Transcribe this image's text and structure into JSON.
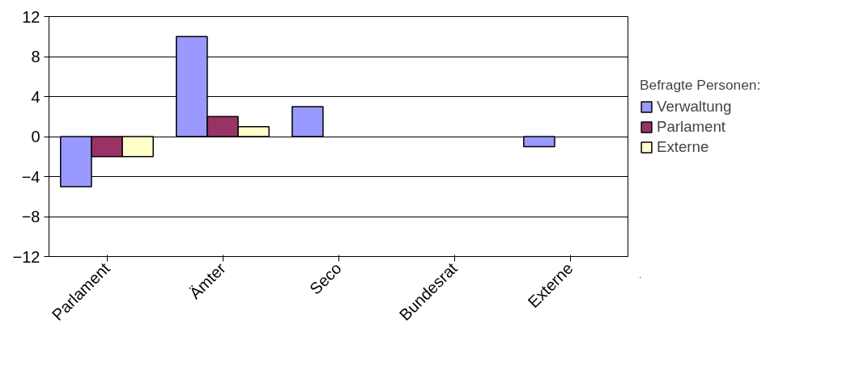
{
  "chart_data": {
    "type": "bar",
    "categories": [
      "Parlament",
      "Ämter",
      "Seco",
      "Bundesrat",
      "Externe"
    ],
    "series": [
      {
        "name": "Verwaltung",
        "color": "#9999ff",
        "values": [
          -5,
          10,
          3,
          null,
          -1
        ]
      },
      {
        "name": "Parlament",
        "color": "#993366",
        "values": [
          -2,
          2,
          null,
          null,
          null
        ]
      },
      {
        "name": "Externe",
        "color": "#ffffcc",
        "values": [
          -2,
          1,
          null,
          null,
          null
        ]
      }
    ],
    "legend_title": "Befragte Personen:",
    "legend": "right",
    "grid": "y",
    "ylim": [
      -12,
      12
    ],
    "yticks": [
      -12,
      -8,
      -4,
      0,
      4,
      8,
      12
    ]
  }
}
